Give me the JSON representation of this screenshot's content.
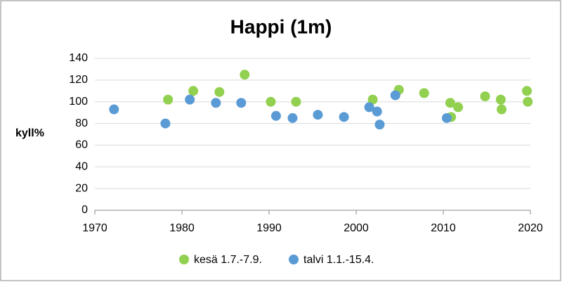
{
  "chart_data": {
    "type": "scatter",
    "title": "Happi (1m)",
    "y_label": "kyll%",
    "xlim": [
      1970,
      2020
    ],
    "xticks": [
      1970,
      1980,
      1990,
      2000,
      2010,
      2020
    ],
    "ylim": [
      0,
      140
    ],
    "yticks": [
      0,
      20,
      40,
      60,
      80,
      100,
      120,
      140
    ],
    "grid": true,
    "legend": "bottom",
    "series": [
      {
        "name": "kesä 1.7.-7.9.",
        "color": "#92d050",
        "x": [
          1978.4,
          1981.3,
          1984.3,
          1987.2,
          1990.2,
          1993.1,
          2001.9,
          2004.9,
          2007.8,
          2010.8,
          2010.9,
          2011.7,
          2014.8,
          2016.6,
          2016.7,
          2019.6,
          2019.7
        ],
        "values": [
          102,
          110,
          109,
          125,
          100,
          100,
          102,
          111,
          108,
          99,
          86,
          95,
          105,
          102,
          93,
          110,
          100
        ]
      },
      {
        "name": "talvi 1.1.-15.4.",
        "color": "#5b9bd5",
        "x": [
          1972.2,
          1978.1,
          1980.9,
          1983.9,
          1986.8,
          1990.8,
          1992.7,
          1995.6,
          1998.6,
          2001.5,
          2002.4,
          2002.7,
          2004.5,
          2010.4
        ],
        "values": [
          93,
          80,
          102,
          99,
          99,
          87,
          85,
          88,
          86,
          95,
          91,
          79,
          106,
          85
        ]
      }
    ]
  }
}
